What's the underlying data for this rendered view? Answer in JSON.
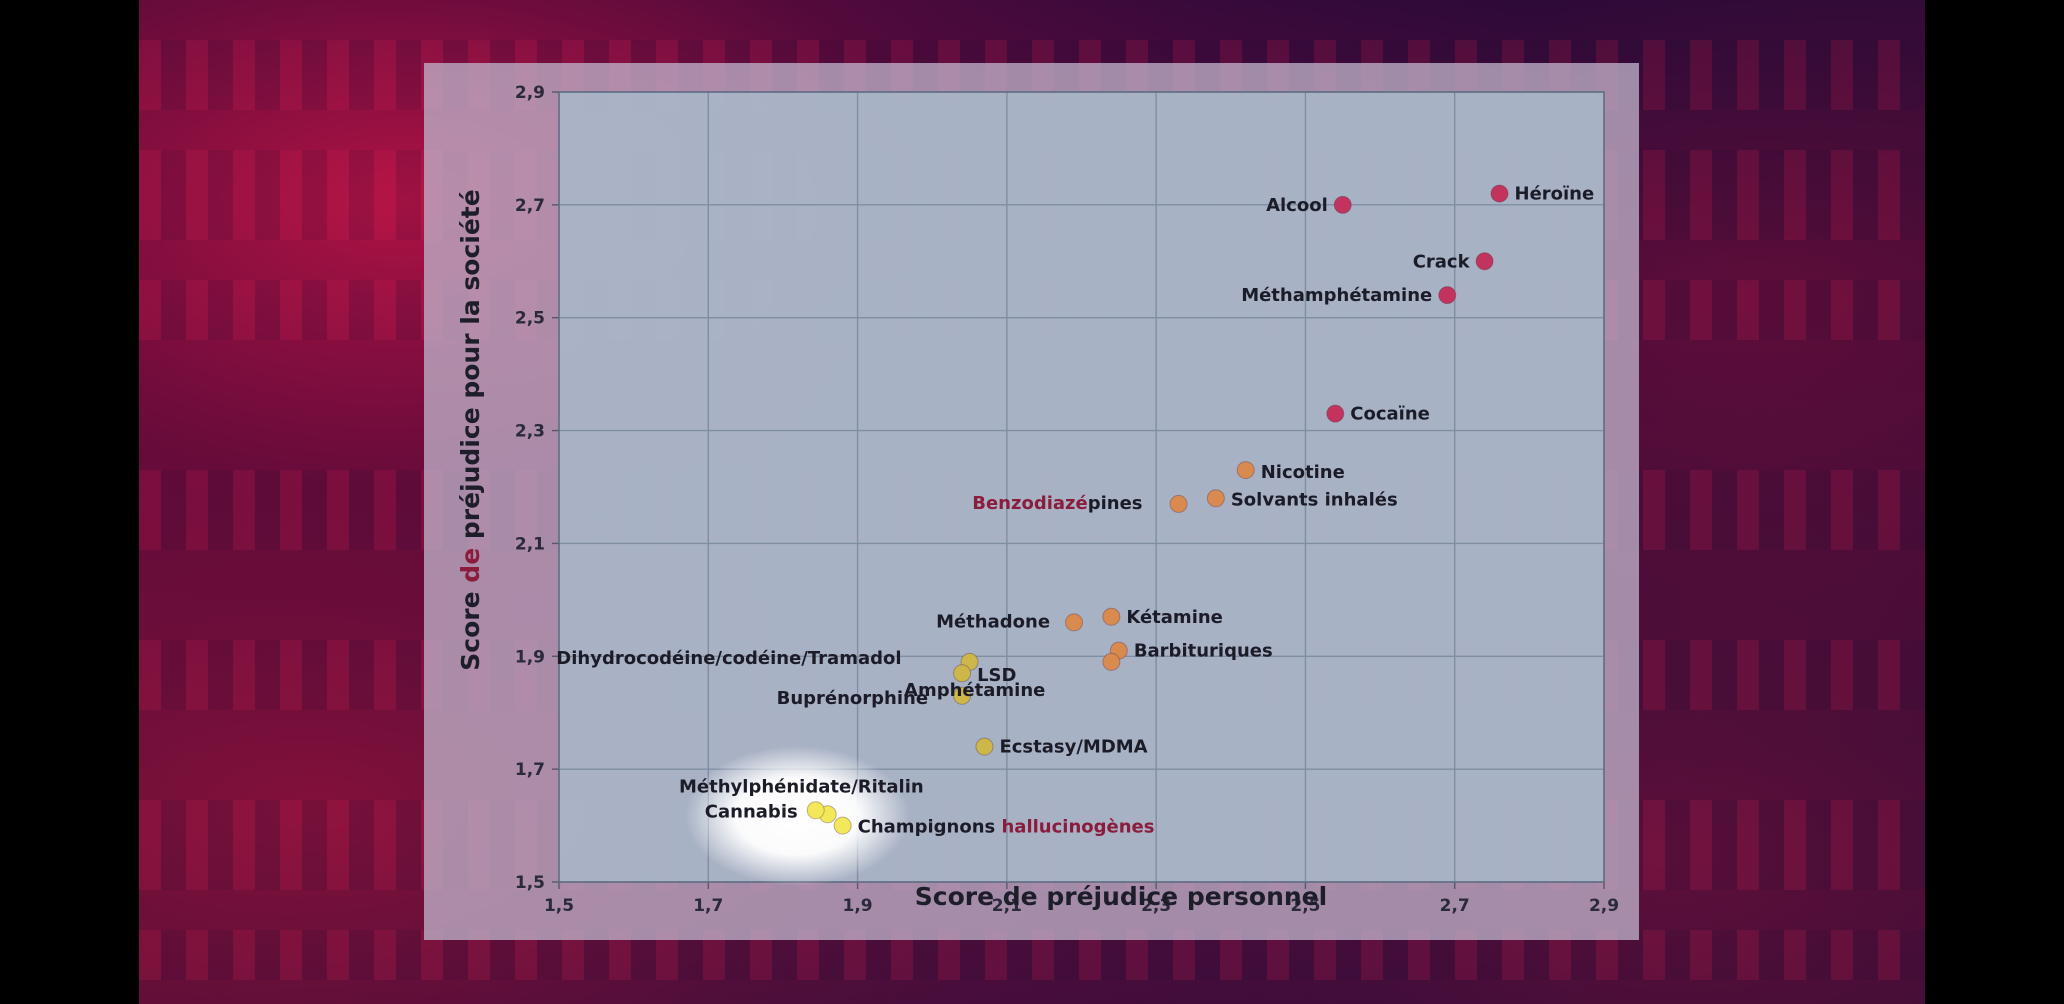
{
  "chart_data": {
    "type": "scatter",
    "xlabel": "Score de préjudice personnel",
    "ylabel": "Score de préjudice pour la société",
    "xlim": [
      1.5,
      2.9
    ],
    "ylim": [
      1.5,
      2.9
    ],
    "x_ticks": [
      "1,5",
      "1,7",
      "1,9",
      "2,1",
      "2,3",
      "2,5",
      "2,7",
      "2,9"
    ],
    "y_ticks": [
      "1,5",
      "1,7",
      "1,9",
      "2,1",
      "2,3",
      "2,5",
      "2,7",
      "2,9"
    ],
    "grid": true,
    "points": [
      {
        "label": "Héroïne",
        "x": 2.76,
        "y": 2.72,
        "color": "#c2345e",
        "label_side": "right"
      },
      {
        "label": "Alcool",
        "x": 2.55,
        "y": 2.7,
        "color": "#c2345e",
        "label_side": "left"
      },
      {
        "label": "Crack",
        "x": 2.74,
        "y": 2.6,
        "color": "#c2345e",
        "label_side": "left"
      },
      {
        "label": "Méthamphétamine",
        "x": 2.69,
        "y": 2.54,
        "color": "#c2345e",
        "label_side": "left"
      },
      {
        "label": "Cocaïne",
        "x": 2.54,
        "y": 2.33,
        "color": "#c2345e",
        "label_side": "right"
      },
      {
        "label": "Nicotine",
        "x": 2.42,
        "y": 2.23,
        "color": "#d98a4e",
        "label_side": "right"
      },
      {
        "label": "Solvants inhalés",
        "x": 2.38,
        "y": 2.18,
        "color": "#d98a4e",
        "label_side": "right"
      },
      {
        "label": "Benzodiazépines",
        "x": 2.33,
        "y": 2.17,
        "color": "#d98a4e",
        "label_side": "left",
        "accent_prefix": "Benzodiazé"
      },
      {
        "label": "Méthadone",
        "x": 2.19,
        "y": 1.96,
        "color": "#d98a4e",
        "label_side": "left"
      },
      {
        "label": "Kétamine",
        "x": 2.24,
        "y": 1.97,
        "color": "#d98a4e",
        "label_side": "right"
      },
      {
        "label": "Barbituriques",
        "x": 2.25,
        "y": 1.91,
        "color": "#d98a4e",
        "label_side": "right"
      },
      {
        "label": "Amphétamine",
        "x": 2.24,
        "y": 1.89,
        "color": "#d98a4e",
        "label_side": "below-left"
      },
      {
        "label": "Dihydrocodéine/codéine/Tramadol",
        "x": 2.05,
        "y": 1.89,
        "color": "#cdb64a",
        "label_side": "far-left"
      },
      {
        "label": "LSD",
        "x": 2.04,
        "y": 1.87,
        "color": "#cdb64a",
        "label_side": "right"
      },
      {
        "label": "Buprénorphine",
        "x": 2.04,
        "y": 1.83,
        "color": "#cdb64a",
        "label_side": "left"
      },
      {
        "label": "Ecstasy/MDMA",
        "x": 2.07,
        "y": 1.74,
        "color": "#cdb64a",
        "label_side": "right"
      },
      {
        "label": "Méthylphénidate/Ritalin",
        "x": 1.86,
        "y": 1.62,
        "color": "#f2e85a",
        "label_side": "above-left"
      },
      {
        "label": "Cannabis",
        "x": 1.86,
        "y": 1.62,
        "color": "#f2e85a",
        "label_side": "left"
      },
      {
        "label": "Champignons hallucinogènes",
        "x": 1.88,
        "y": 1.6,
        "color": "#f2e85a",
        "label_side": "right",
        "accent_suffix": "hallucinogènes"
      }
    ],
    "highlight": {
      "x": 1.87,
      "y": 1.61,
      "color": "#ffffff"
    }
  }
}
